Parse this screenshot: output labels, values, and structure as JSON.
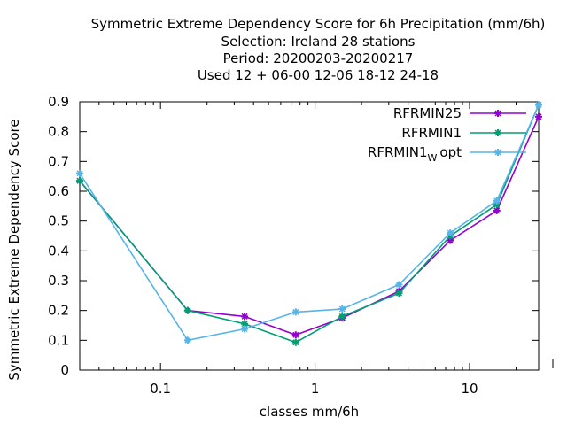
{
  "chart_data": {
    "type": "line",
    "title_lines": [
      "Symmetric Extreme Dependency Score  for 6h Precipitation (mm/6h)",
      "Selection: Ireland     28 stations",
      "Period: 20200203-20200217",
      "Used  12 + 06-00 12-06 18-12 24-18"
    ],
    "xlabel": "classes mm/6h",
    "ylabel": "Symmetric Extreme Dependency Score",
    "x_scale": "log",
    "xlim": [
      0.03,
      28
    ],
    "ylim": [
      0,
      0.9
    ],
    "x_ticks": [
      {
        "value": 0.1,
        "label": "0.1"
      },
      {
        "value": 1,
        "label": "1"
      },
      {
        "value": 10,
        "label": "10"
      }
    ],
    "y_ticks": [
      {
        "value": 0,
        "label": "0"
      },
      {
        "value": 0.1,
        "label": "0.1"
      },
      {
        "value": 0.2,
        "label": "0.2"
      },
      {
        "value": 0.3,
        "label": "0.3"
      },
      {
        "value": 0.4,
        "label": "0.4"
      },
      {
        "value": 0.5,
        "label": "0.5"
      },
      {
        "value": 0.6,
        "label": "0.6"
      },
      {
        "value": 0.7,
        "label": "0.7"
      },
      {
        "value": 0.8,
        "label": "0.8"
      },
      {
        "value": 0.9,
        "label": "0.9"
      }
    ],
    "grid": false,
    "legend_position": "top-right",
    "series": [
      {
        "name": "RFRMIN25",
        "color": "#9400d3",
        "x": [
          0.03,
          0.15,
          0.35,
          0.75,
          1.5,
          3.5,
          7.5,
          15,
          28
        ],
        "y": [
          0.635,
          0.2,
          0.18,
          0.118,
          0.175,
          0.265,
          0.435,
          0.535,
          0.85
        ]
      },
      {
        "name": "RFRMIN1",
        "color": "#009e73",
        "x": [
          0.03,
          0.15,
          0.35,
          0.75,
          1.5,
          3.5,
          7.5,
          15,
          28
        ],
        "y": [
          0.635,
          0.2,
          0.155,
          0.093,
          0.18,
          0.258,
          0.45,
          0.555,
          0.89
        ]
      },
      {
        "name": "RFRMIN1",
        "name_subscript": "W",
        "name_suffix": "opt",
        "color": "#56b4e9",
        "x": [
          0.03,
          0.15,
          0.35,
          0.75,
          1.5,
          3.5,
          7.5,
          15,
          28
        ],
        "y": [
          0.66,
          0.1,
          0.138,
          0.195,
          0.205,
          0.287,
          0.46,
          0.568,
          0.89
        ]
      }
    ]
  }
}
